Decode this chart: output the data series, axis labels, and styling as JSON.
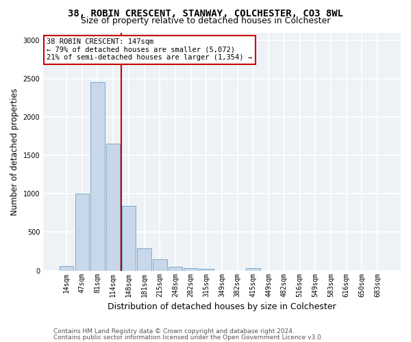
{
  "title_line1": "38, ROBIN CRESCENT, STANWAY, COLCHESTER, CO3 8WL",
  "title_line2": "Size of property relative to detached houses in Colchester",
  "xlabel": "Distribution of detached houses by size in Colchester",
  "ylabel": "Number of detached properties",
  "categories": [
    "14sqm",
    "47sqm",
    "81sqm",
    "114sqm",
    "148sqm",
    "181sqm",
    "215sqm",
    "248sqm",
    "282sqm",
    "315sqm",
    "349sqm",
    "382sqm",
    "415sqm",
    "449sqm",
    "482sqm",
    "516sqm",
    "549sqm",
    "583sqm",
    "616sqm",
    "650sqm",
    "683sqm"
  ],
  "values": [
    55,
    1000,
    2450,
    1650,
    840,
    290,
    145,
    50,
    35,
    25,
    0,
    0,
    30,
    0,
    0,
    0,
    0,
    0,
    0,
    0,
    0
  ],
  "bar_color": "#c8d8ea",
  "bar_edge_color": "#7aaac8",
  "vline_index": 4,
  "property_line_label": "38 ROBIN CRESCENT: 147sqm",
  "annotation_line2": "← 79% of detached houses are smaller (5,072)",
  "annotation_line3": "21% of semi-detached houses are larger (1,354) →",
  "annotation_box_color": "white",
  "annotation_box_edge_color": "#cc0000",
  "vline_color": "#cc0000",
  "ylim": [
    0,
    3100
  ],
  "yticks": [
    0,
    500,
    1000,
    1500,
    2000,
    2500,
    3000
  ],
  "footer_line1": "Contains HM Land Registry data © Crown copyright and database right 2024.",
  "footer_line2": "Contains public sector information licensed under the Open Government Licence v3.0.",
  "bg_color": "#ffffff",
  "plot_bg_color": "#eef2f7",
  "grid_color": "#ffffff",
  "title_fontsize": 10,
  "subtitle_fontsize": 9,
  "axis_label_fontsize": 8.5,
  "tick_fontsize": 7,
  "annot_fontsize": 7.5,
  "footer_fontsize": 6.5
}
